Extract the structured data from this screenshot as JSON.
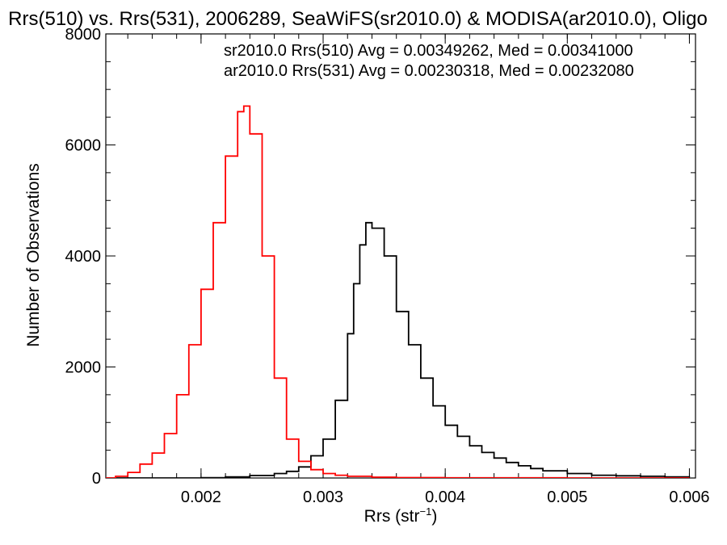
{
  "chart_data": {
    "type": "line",
    "title": "Rrs(510) vs. Rrs(531), 2006289, SeaWiFS(sr2010.0) & MODISA(ar2010.0), Oligo",
    "xlabel": "Rrs (str",
    "xlabel_sup": "−1",
    "xlabel_end": ")",
    "ylabel": "Number of Observations",
    "xlim": [
      0.00122,
      0.00605
    ],
    "ylim": [
      0,
      8000
    ],
    "xticks": [
      0.002,
      0.003,
      0.004,
      0.005,
      0.006
    ],
    "xtick_labels": [
      "0.002",
      "0.003",
      "0.004",
      "0.005",
      "0.006"
    ],
    "yticks": [
      0,
      2000,
      4000,
      6000,
      8000
    ],
    "ytick_labels": [
      "0",
      "2000",
      "4000",
      "6000",
      "8000"
    ],
    "legend_placement": "top-right",
    "series": [
      {
        "name": "sr2010.0 Rrs(510) Avg = 0.00349262, Med = 0.00341000",
        "color": "#000000",
        "x": [
          0.0012,
          0.0014,
          0.0016,
          0.0018,
          0.002,
          0.0022,
          0.0024,
          0.0026,
          0.0027,
          0.0028,
          0.0029,
          0.003,
          0.0031,
          0.0032,
          0.00325,
          0.0033,
          0.00335,
          0.0034,
          0.0035,
          0.0036,
          0.0037,
          0.0038,
          0.0039,
          0.004,
          0.0041,
          0.0042,
          0.0043,
          0.0044,
          0.0045,
          0.0046,
          0.0047,
          0.0048,
          0.005,
          0.0052,
          0.0054,
          0.0056,
          0.0058,
          0.006
        ],
        "y": [
          0,
          0,
          0,
          0,
          5,
          20,
          45,
          80,
          120,
          200,
          400,
          700,
          1400,
          2600,
          3500,
          4200,
          4600,
          4500,
          4000,
          3000,
          2400,
          1800,
          1300,
          950,
          750,
          580,
          460,
          360,
          280,
          220,
          170,
          130,
          80,
          50,
          40,
          30,
          20,
          15
        ]
      },
      {
        "name": "ar2010.0 Rrs(531) Avg = 0.00230318, Med = 0.00232080",
        "color": "#ff0000",
        "x": [
          0.0012,
          0.0013,
          0.0014,
          0.0015,
          0.0016,
          0.0017,
          0.0018,
          0.0019,
          0.002,
          0.0021,
          0.0022,
          0.0023,
          0.00235,
          0.0024,
          0.0025,
          0.0026,
          0.0027,
          0.0028,
          0.0029,
          0.003,
          0.0031,
          0.0032,
          0.0034,
          0.0036,
          0.004,
          0.005,
          0.006
        ],
        "y": [
          0,
          30,
          100,
          250,
          450,
          800,
          1500,
          2400,
          3400,
          4600,
          5800,
          6600,
          6700,
          6200,
          4000,
          1800,
          700,
          300,
          150,
          80,
          50,
          30,
          15,
          8,
          3,
          0,
          0
        ]
      }
    ]
  }
}
